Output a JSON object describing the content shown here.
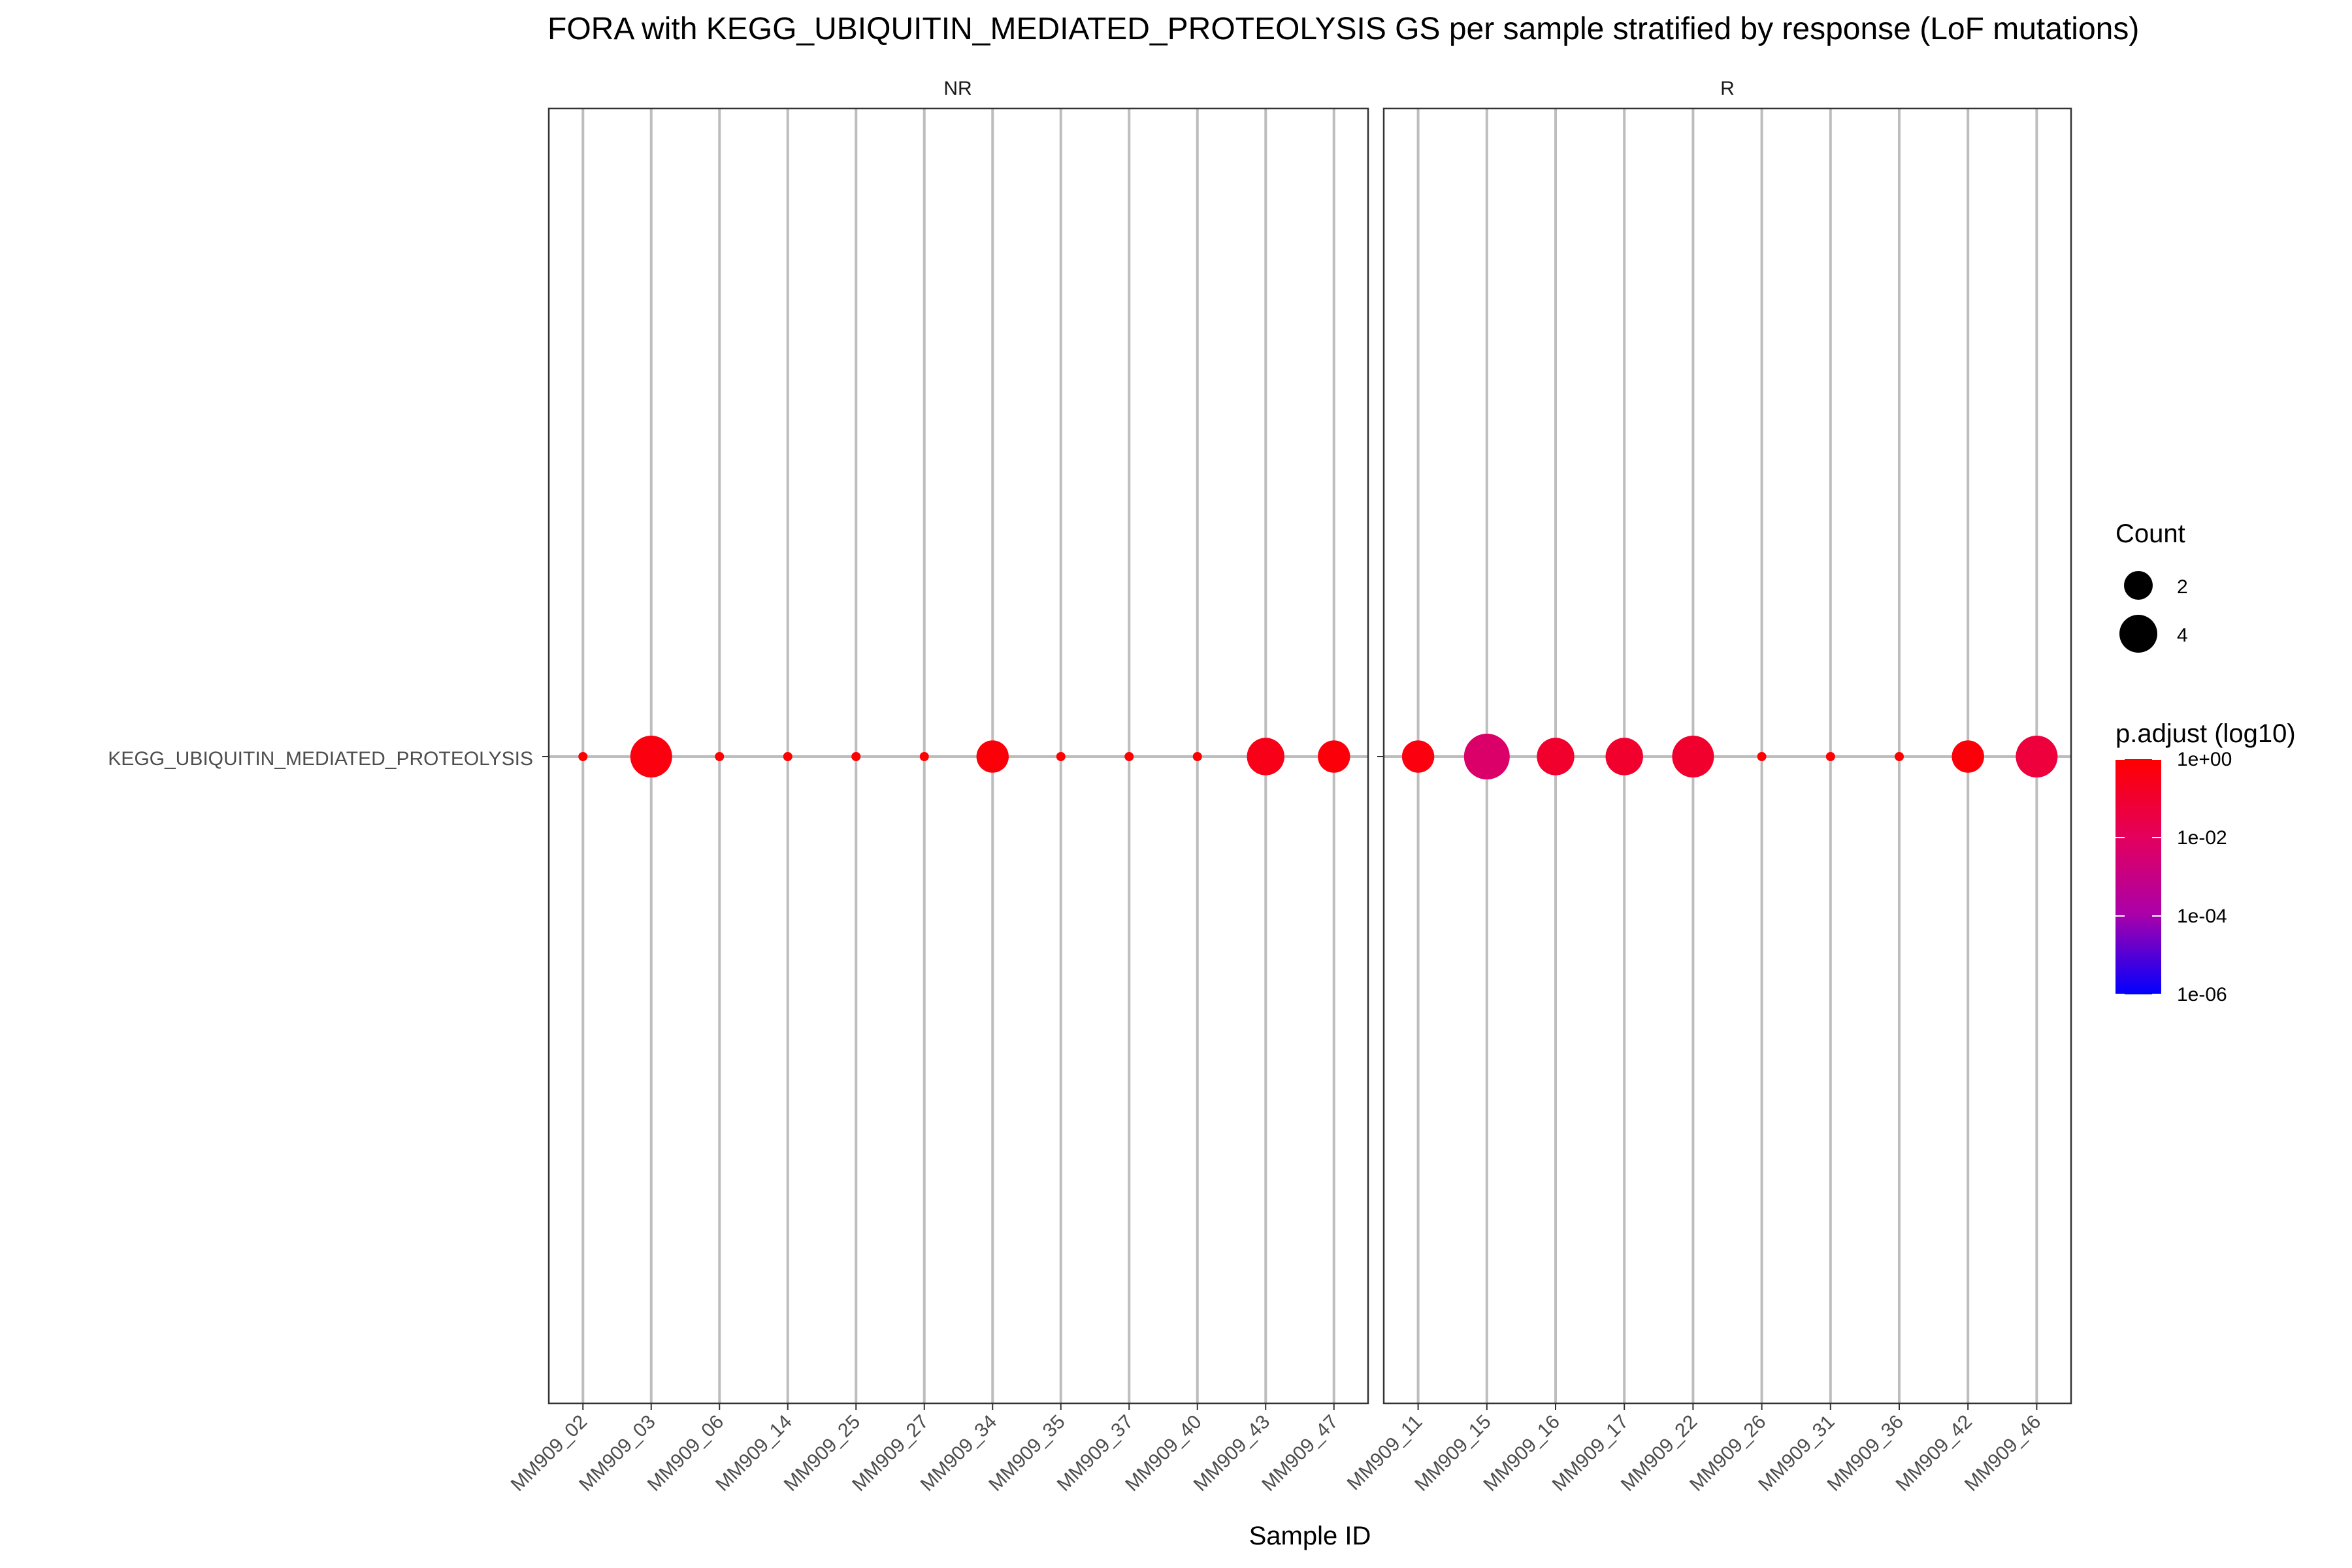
{
  "chart_data": {
    "type": "scatter",
    "title": "FORA with KEGG_UBIQUITIN_MEDIATED_PROTEOLYSIS GS per sample stratified by response (LoF mutations)",
    "xlabel": "Sample ID",
    "ylabel": "",
    "y_categories": [
      "KEGG_UBIQUITIN_MEDIATED_PROTEOLYSIS"
    ],
    "grid": true,
    "facets": [
      {
        "name": "NR",
        "categories": [
          "MM909_02",
          "MM909_03",
          "MM909_06",
          "MM909_14",
          "MM909_25",
          "MM909_27",
          "MM909_34",
          "MM909_35",
          "MM909_37",
          "MM909_40",
          "MM909_43",
          "MM909_47"
        ],
        "count": [
          1,
          5,
          1,
          1,
          1,
          1,
          3,
          1,
          1,
          1,
          4,
          3
        ],
        "p_adjust": [
          1,
          0.5,
          1,
          1,
          1,
          1,
          0.6,
          1,
          1,
          1,
          0.3,
          0.6
        ]
      },
      {
        "name": "R",
        "categories": [
          "MM909_11",
          "MM909_15",
          "MM909_16",
          "MM909_17",
          "MM909_22",
          "MM909_26",
          "MM909_31",
          "MM909_36",
          "MM909_42",
          "MM909_46"
        ],
        "count": [
          3,
          6,
          4,
          4,
          5,
          1,
          1,
          1,
          3,
          5
        ],
        "p_adjust": [
          0.5,
          0.005,
          0.1,
          0.1,
          0.1,
          1,
          1,
          1,
          0.6,
          0.05
        ]
      }
    ],
    "legend": {
      "placement": "right",
      "size_title": "Count",
      "size_breaks": [
        2,
        4
      ],
      "color_title": "p.adjust (log10)",
      "color_breaks": [
        "1e+00",
        "1e-02",
        "1e-04",
        "1e-06"
      ],
      "color_domain_log10": [
        -6,
        0
      ],
      "color_low": "#0000ff",
      "color_high": "#ff0000"
    }
  }
}
